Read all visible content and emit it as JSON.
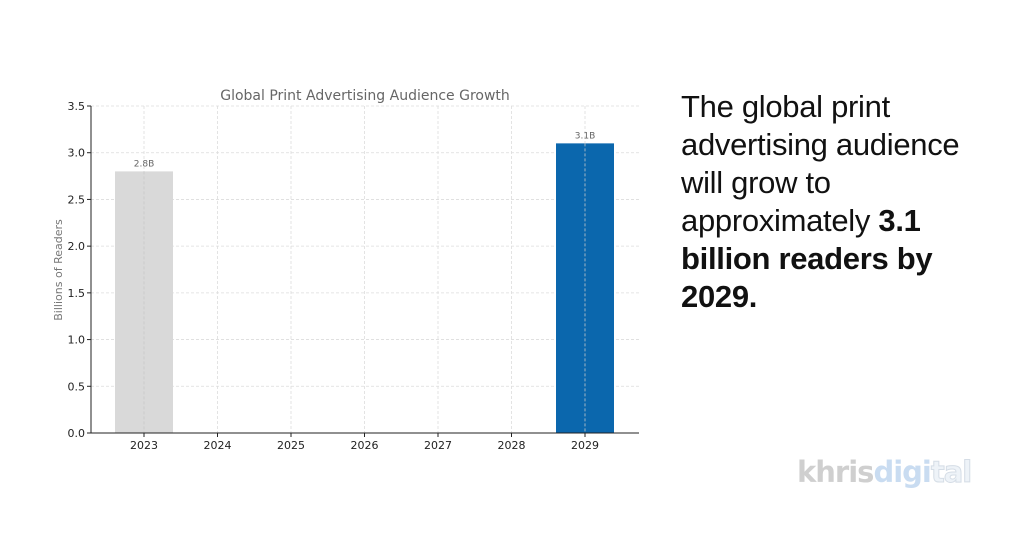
{
  "chart_data": {
    "type": "bar",
    "title": "Global Print Advertising Audience Growth",
    "xlabel": "",
    "ylabel": "Billions of Readers",
    "categories": [
      "2023",
      "2024",
      "2025",
      "2026",
      "2027",
      "2028",
      "2029"
    ],
    "values": [
      2.8,
      null,
      null,
      null,
      null,
      null,
      3.1
    ],
    "data_labels": [
      "2.8B",
      "",
      "",
      "",
      "",
      "",
      "3.1B"
    ],
    "bar_colors": [
      "#d9d9d9",
      "#d9d9d9",
      "#d9d9d9",
      "#d9d9d9",
      "#d9d9d9",
      "#d9d9d9",
      "#0b67ad"
    ],
    "ylim": [
      0,
      3.5
    ],
    "yticks": [
      "0.0",
      "0.5",
      "1.0",
      "1.5",
      "2.0",
      "2.5",
      "3.0",
      "3.5"
    ],
    "grid": true
  },
  "headline": {
    "normal": "The global print advertising audience will grow to approximately",
    "bold": "3.1 billion readers by 2029."
  },
  "logo": {
    "part1": "khris",
    "part2": "digi",
    "part3": "tal"
  }
}
